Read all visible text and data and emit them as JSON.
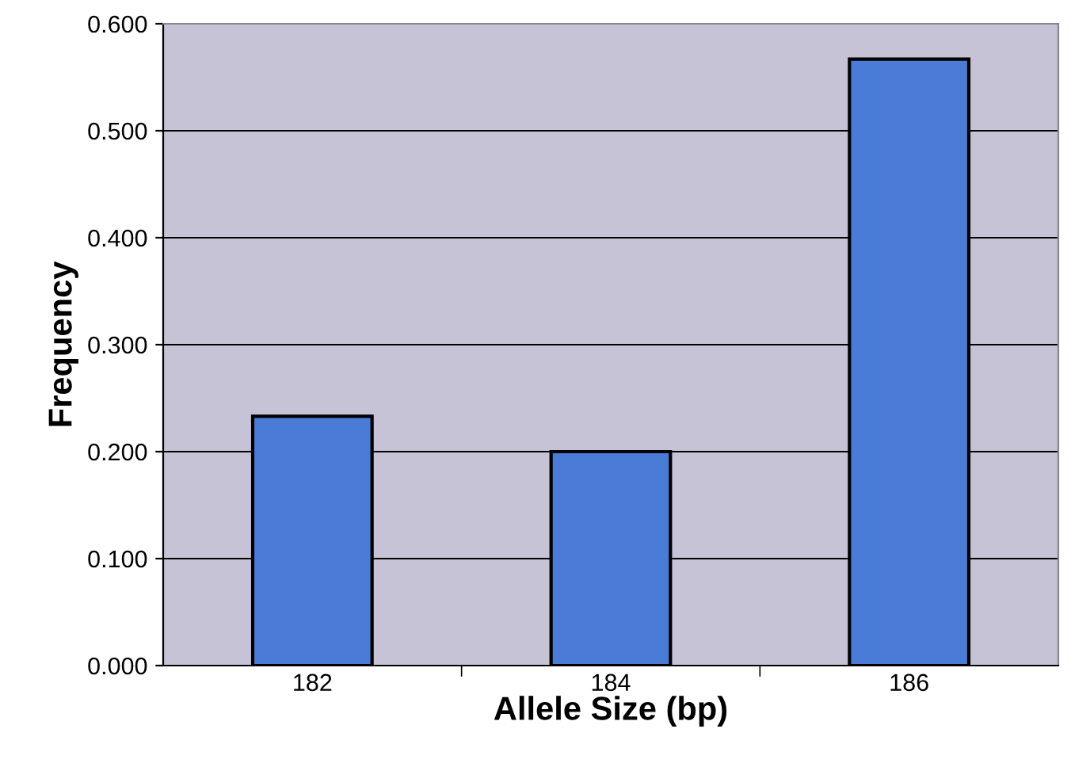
{
  "chart_data": {
    "type": "bar",
    "xlabel": "Allele Size (bp)",
    "ylabel": "Frequency",
    "categories": [
      "182",
      "184",
      "186"
    ],
    "values": [
      0.233,
      0.2,
      0.567
    ],
    "color": "#4a7bd6",
    "ylim": [
      0,
      0.6
    ],
    "yticks": [
      {
        "value": 0,
        "label": "0.000"
      },
      {
        "value": 0.1,
        "label": "0.100"
      },
      {
        "value": 0.2,
        "label": "0.200"
      },
      {
        "value": 0.3,
        "label": "0.300"
      },
      {
        "value": 0.4,
        "label": "0.400"
      },
      {
        "value": 0.5,
        "label": "0.500"
      },
      {
        "value": 0.6,
        "label": "0.600"
      }
    ],
    "grid": "y"
  }
}
